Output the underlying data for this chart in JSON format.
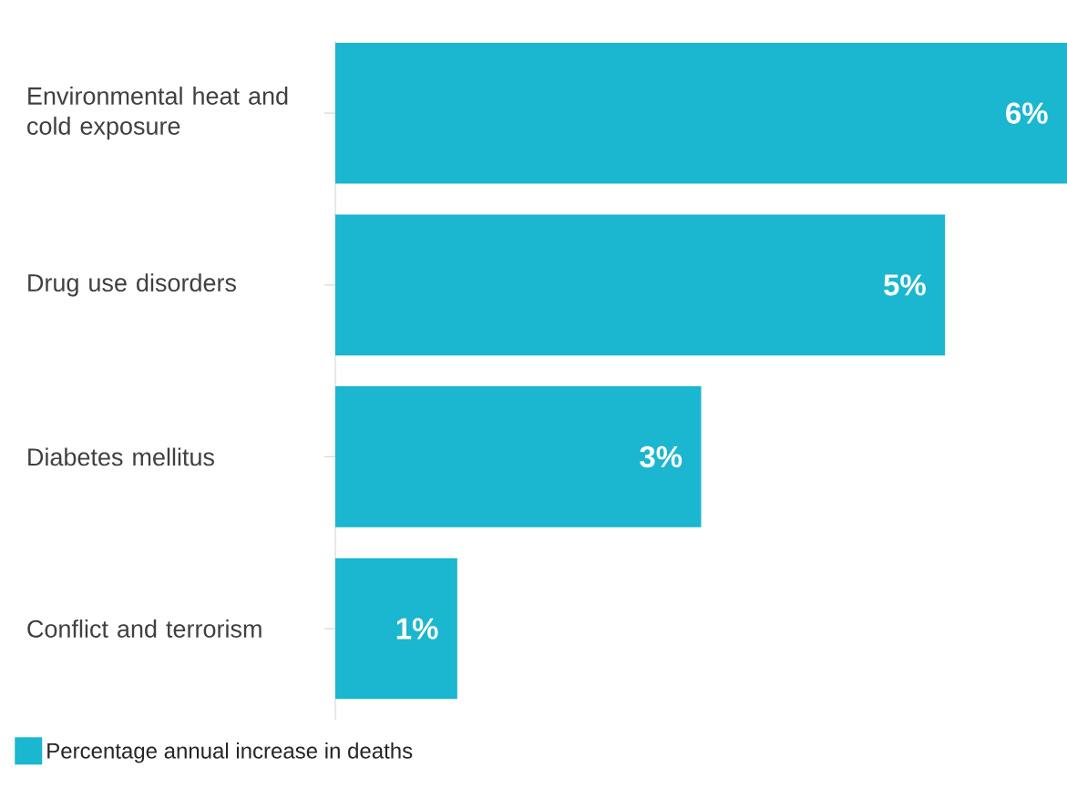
{
  "chart_data": {
    "type": "bar",
    "orientation": "horizontal",
    "categories": [
      "Environmental heat and cold exposure",
      "Drug use disorders",
      "Diabetes mellitus",
      "Conflict and terrorism"
    ],
    "series": [
      {
        "name": "Percentage annual increase in deaths",
        "color": "#1bb6cf",
        "values": [
          6,
          5,
          3,
          1
        ],
        "value_labels": [
          "6%",
          "5%",
          "3%",
          "1%"
        ]
      }
    ],
    "legend": "bottom left"
  }
}
